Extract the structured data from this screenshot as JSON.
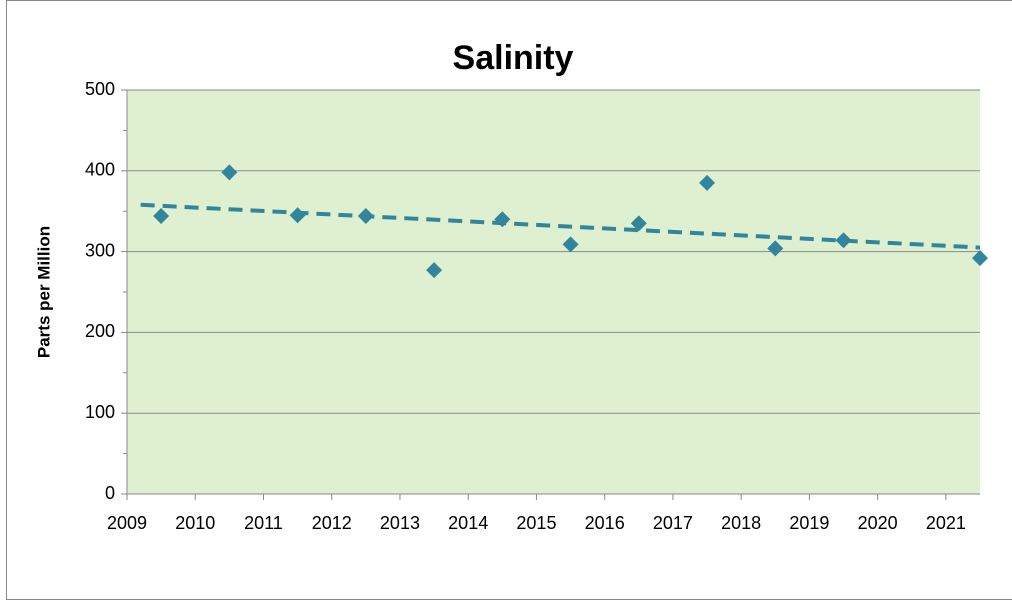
{
  "chart_data": {
    "type": "scatter",
    "title": "Salinity",
    "ylabel": "Parts per Million",
    "x": [
      2009.5,
      2010.5,
      2011.5,
      2012.5,
      2013.5,
      2014.5,
      2015.5,
      2016.5,
      2017.5,
      2018.5,
      2019.5,
      2021.5
    ],
    "values": [
      344,
      398,
      345,
      344,
      277,
      340,
      309,
      335,
      385,
      304,
      314,
      292
    ],
    "color": "#31859c",
    "trend": {
      "x": [
        2009.2,
        2021.5
      ],
      "values": [
        358,
        305
      ],
      "color": "#31859c"
    },
    "xlim": [
      2009,
      2021.5
    ],
    "xticks": [
      2009,
      2010,
      2011,
      2012,
      2013,
      2014,
      2015,
      2016,
      2017,
      2018,
      2019,
      2020,
      2021
    ],
    "ylim": [
      0,
      500
    ],
    "yticks": [
      0,
      100,
      200,
      300,
      400,
      500
    ],
    "yminorticks": [
      50,
      150,
      250,
      350,
      450
    ],
    "grid": true,
    "background": "#dff0d0"
  }
}
